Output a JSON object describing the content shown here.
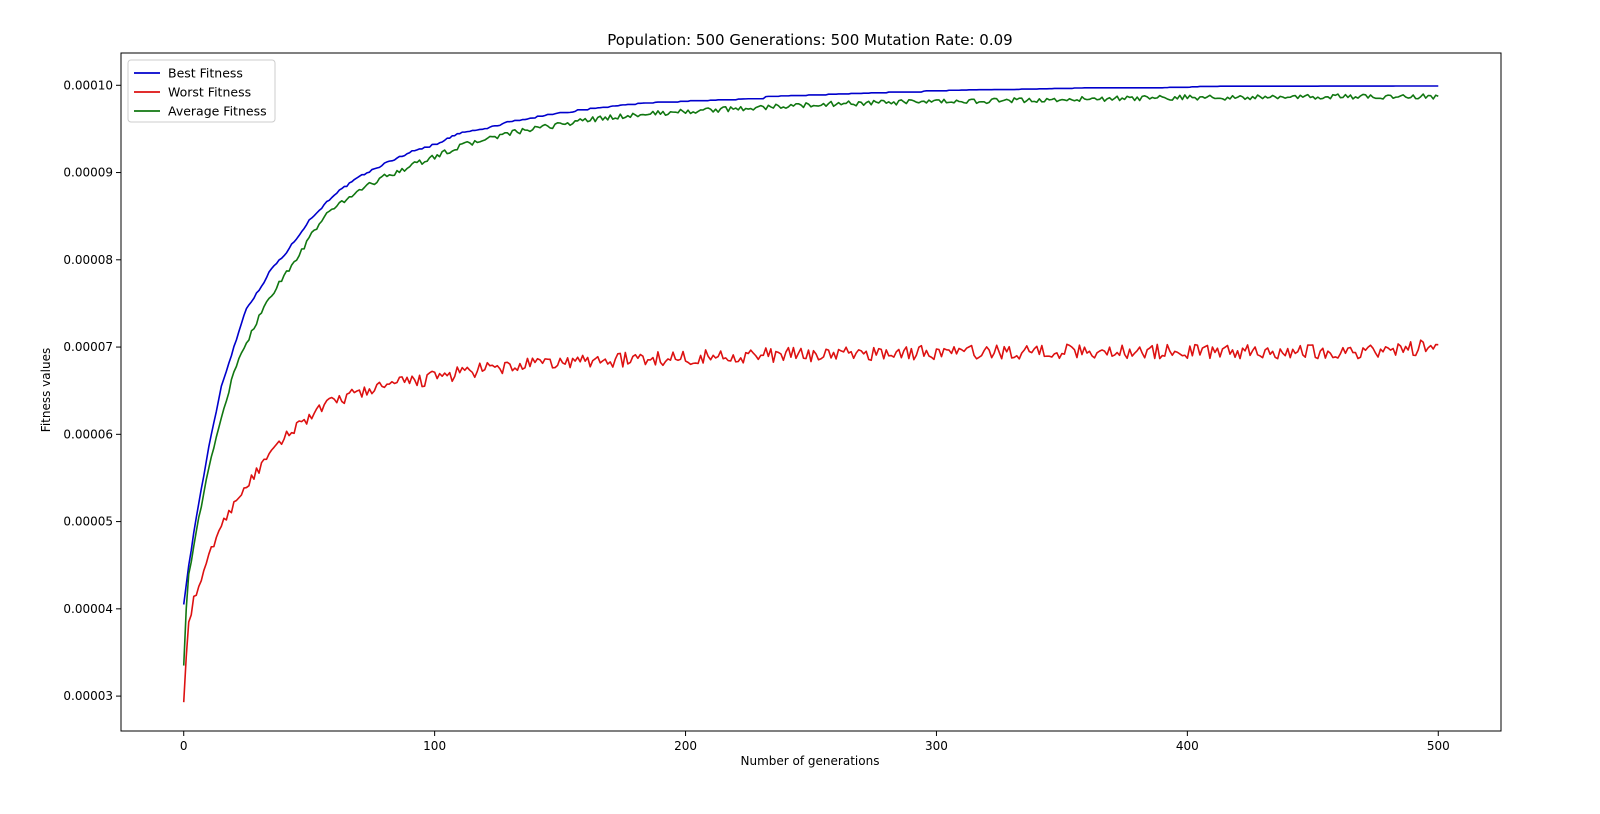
{
  "chart_data": {
    "type": "line",
    "title": "Population: 500 Generations: 500 Mutation Rate: 0.09",
    "xlabel": "Number of generations",
    "ylabel": "Fitness values",
    "xlim": [
      -25,
      525
    ],
    "ylim": [
      2.6e-05,
      0.0001037
    ],
    "xticks": [
      0,
      100,
      200,
      300,
      400,
      500
    ],
    "xtick_labels": [
      "0",
      "100",
      "200",
      "300",
      "400",
      "500"
    ],
    "yticks": [
      3e-05,
      4e-05,
      5e-05,
      6e-05,
      7e-05,
      8e-05,
      9e-05,
      0.0001
    ],
    "ytick_labels": [
      "0.00003",
      "0.00004",
      "0.00005",
      "0.00006",
      "0.00007",
      "0.00008",
      "0.00009",
      "0.00010"
    ],
    "grid": false,
    "legend_position": "top-left",
    "series": [
      {
        "name": "Best Fitness",
        "color": "#0000cc",
        "x": [
          0,
          2,
          5,
          10,
          15,
          20,
          25,
          30,
          35,
          40,
          45,
          50,
          55,
          60,
          70,
          80,
          90,
          100,
          110,
          120,
          130,
          140,
          150,
          160,
          170,
          180,
          190,
          200,
          210,
          220,
          230,
          232,
          240,
          250,
          260,
          270,
          280,
          290,
          300,
          320,
          340,
          360,
          380,
          400,
          408,
          420,
          440,
          460,
          480,
          500
        ],
        "y": [
          4.05e-05,
          4.5e-05,
          5.05e-05,
          5.85e-05,
          6.55e-05,
          7e-05,
          7.45e-05,
          7.65e-05,
          7.9e-05,
          8.05e-05,
          8.25e-05,
          8.45e-05,
          8.6e-05,
          8.75e-05,
          8.95e-05,
          9.1e-05,
          9.23e-05,
          9.32e-05,
          9.45e-05,
          9.5e-05,
          9.58e-05,
          9.63e-05,
          9.68e-05,
          9.72e-05,
          9.75e-05,
          9.78e-05,
          9.8e-05,
          9.81e-05,
          9.82e-05,
          9.83e-05,
          9.84e-05,
          9.86e-05,
          9.87e-05,
          9.88e-05,
          9.89e-05,
          9.9e-05,
          9.91e-05,
          9.92e-05,
          9.93e-05,
          9.94e-05,
          9.95e-05,
          9.96e-05,
          9.96e-05,
          9.97e-05,
          9.98e-05,
          9.98e-05,
          9.98e-05,
          9.98e-05,
          9.98e-05,
          9.98e-05
        ]
      },
      {
        "name": "Worst Fitness",
        "color": "#dd1111",
        "x": [
          0,
          1,
          2,
          4,
          6,
          8,
          10,
          14,
          18,
          22,
          26,
          30,
          35,
          40,
          45,
          50,
          55,
          60,
          70,
          80,
          90,
          100,
          110,
          120,
          130,
          140,
          150,
          160,
          170,
          180,
          190,
          200,
          220,
          240,
          260,
          280,
          300,
          320,
          340,
          360,
          380,
          400,
          420,
          440,
          460,
          480,
          500
        ],
        "y": [
          2.93e-05,
          3.45e-05,
          3.85e-05,
          4.1e-05,
          4.25e-05,
          4.4e-05,
          4.6e-05,
          4.9e-05,
          5.1e-05,
          5.3e-05,
          5.45e-05,
          5.6e-05,
          5.78e-05,
          5.95e-05,
          6.1e-05,
          6.2e-05,
          6.3e-05,
          6.38e-05,
          6.48e-05,
          6.55e-05,
          6.6e-05,
          6.65e-05,
          6.7e-05,
          6.74e-05,
          6.77e-05,
          6.8e-05,
          6.82e-05,
          6.84e-05,
          6.85e-05,
          6.86e-05,
          6.87e-05,
          6.88e-05,
          6.9e-05,
          6.91e-05,
          6.92e-05,
          6.93e-05,
          6.94e-05,
          6.94e-05,
          6.95e-05,
          6.95e-05,
          6.95e-05,
          6.95e-05,
          6.95e-05,
          6.95e-05,
          6.95e-05,
          6.95e-05,
          7.02e-05
        ]
      },
      {
        "name": "Average Fitness",
        "color": "#117711",
        "x": [
          0,
          1,
          2,
          5,
          10,
          15,
          20,
          25,
          30,
          35,
          40,
          45,
          50,
          55,
          60,
          70,
          80,
          90,
          100,
          110,
          120,
          130,
          140,
          150,
          160,
          170,
          180,
          190,
          200,
          220,
          240,
          260,
          280,
          300,
          320,
          340,
          360,
          380,
          400,
          420,
          440,
          460,
          480,
          500
        ],
        "y": [
          3.35e-05,
          4e-05,
          4.4e-05,
          4.9e-05,
          5.6e-05,
          6.2e-05,
          6.7e-05,
          7.05e-05,
          7.35e-05,
          7.6e-05,
          7.82e-05,
          8e-05,
          8.25e-05,
          8.45e-05,
          8.6e-05,
          8.8e-05,
          8.95e-05,
          9.07e-05,
          9.18e-05,
          9.3e-05,
          9.38e-05,
          9.45e-05,
          9.5e-05,
          9.55e-05,
          9.6e-05,
          9.63e-05,
          9.66e-05,
          9.68e-05,
          9.7e-05,
          9.73e-05,
          9.76e-05,
          9.79e-05,
          9.8e-05,
          9.81e-05,
          9.82e-05,
          9.83e-05,
          9.84e-05,
          9.85e-05,
          9.86e-05,
          9.86e-05,
          9.86e-05,
          9.87e-05,
          9.87e-05,
          9.87e-05
        ]
      }
    ]
  }
}
